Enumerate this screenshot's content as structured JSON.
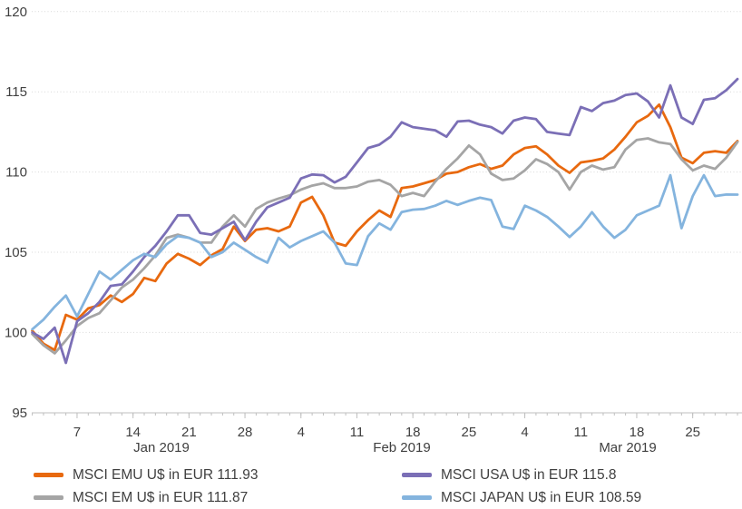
{
  "chart_data": {
    "type": "line",
    "title": "",
    "grid": "horizontal-dotted",
    "legend_position": "bottom",
    "x_axis": {
      "label": "",
      "num_points": 64,
      "start_date": "Jan 1 2019",
      "end_date": "Mar 29 2019",
      "week_tick_indices": [
        4,
        9,
        14,
        19,
        24,
        29,
        34,
        39,
        44,
        49,
        54,
        59
      ],
      "tick_labels": [
        "7",
        "14",
        "21",
        "28",
        "4",
        "11",
        "18",
        "25",
        "4",
        "11",
        "18",
        "25"
      ],
      "month_labels": [
        "Jan 2019",
        "Feb 2019",
        "Mar 2019"
      ]
    },
    "y_axis": {
      "label": "",
      "min": 95,
      "max": 120,
      "tick_values": [
        95,
        100,
        105,
        110,
        115,
        120
      ],
      "grid_values": [
        100,
        105,
        110,
        115,
        120
      ]
    },
    "series": [
      {
        "name": "MSCI EMU U$ in EUR",
        "final_value": 111.93,
        "color": "#E8690F",
        "values": [
          100.1,
          99.3,
          98.9,
          101.1,
          100.8,
          101.5,
          101.7,
          102.3,
          101.9,
          102.4,
          103.4,
          103.2,
          104.3,
          104.9,
          104.6,
          104.2,
          104.8,
          105.2,
          106.6,
          105.7,
          106.4,
          106.5,
          106.3,
          106.6,
          108.1,
          108.45,
          107.3,
          105.6,
          105.4,
          106.3,
          107.0,
          107.6,
          107.2,
          109.0,
          109.1,
          109.3,
          109.5,
          109.9,
          110.0,
          110.3,
          110.5,
          110.2,
          110.4,
          111.1,
          111.5,
          111.6,
          111.1,
          110.4,
          109.95,
          110.6,
          110.7,
          110.85,
          111.4,
          112.2,
          113.1,
          113.5,
          114.2,
          112.8,
          110.9,
          110.55,
          111.2,
          111.3,
          111.2,
          111.93
        ]
      },
      {
        "name": "MSCI EM U$ in EUR",
        "final_value": 111.87,
        "color": "#A5A5A5",
        "values": [
          99.9,
          99.2,
          98.7,
          99.5,
          100.4,
          100.9,
          101.2,
          102.0,
          102.8,
          103.3,
          104.0,
          104.8,
          105.9,
          106.1,
          105.9,
          105.6,
          105.6,
          106.6,
          107.3,
          106.6,
          107.7,
          108.1,
          108.35,
          108.55,
          108.9,
          109.15,
          109.3,
          109.0,
          109.0,
          109.1,
          109.4,
          109.5,
          109.2,
          108.5,
          108.7,
          108.5,
          109.4,
          110.2,
          110.85,
          111.65,
          111.1,
          109.9,
          109.5,
          109.6,
          110.1,
          110.8,
          110.5,
          110.0,
          108.9,
          110.0,
          110.4,
          110.15,
          110.3,
          111.4,
          112.0,
          112.1,
          111.85,
          111.75,
          110.8,
          110.1,
          110.4,
          110.2,
          110.9,
          111.87
        ]
      },
      {
        "name": "MSCI USA U$ in EUR",
        "final_value": 115.8,
        "color": "#7B6FB6",
        "values": [
          100.0,
          99.6,
          100.3,
          98.1,
          100.7,
          101.2,
          101.9,
          102.9,
          103.0,
          103.8,
          104.7,
          105.4,
          106.3,
          107.3,
          107.3,
          106.2,
          106.1,
          106.5,
          106.9,
          105.75,
          106.9,
          107.8,
          108.1,
          108.4,
          109.6,
          109.85,
          109.8,
          109.35,
          109.7,
          110.6,
          111.5,
          111.7,
          112.2,
          113.1,
          112.8,
          112.7,
          112.6,
          112.2,
          113.15,
          113.2,
          112.95,
          112.8,
          112.4,
          113.2,
          113.4,
          113.3,
          112.5,
          112.4,
          112.3,
          114.05,
          113.8,
          114.3,
          114.45,
          114.8,
          114.9,
          114.4,
          113.4,
          115.4,
          113.4,
          113.0,
          114.5,
          114.6,
          115.1,
          115.8
        ]
      },
      {
        "name": "MSCI JAPAN U$ in EUR",
        "final_value": 108.59,
        "color": "#84B4DE",
        "values": [
          100.2,
          100.8,
          101.6,
          102.3,
          101.0,
          102.4,
          103.8,
          103.3,
          103.9,
          104.5,
          104.9,
          104.7,
          105.5,
          106.0,
          105.9,
          105.6,
          104.7,
          105.0,
          105.6,
          105.15,
          104.7,
          104.35,
          105.9,
          105.3,
          105.7,
          106.0,
          106.3,
          105.6,
          104.3,
          104.2,
          106.0,
          106.8,
          106.4,
          107.5,
          107.65,
          107.7,
          107.9,
          108.2,
          107.95,
          108.2,
          108.4,
          108.25,
          106.6,
          106.45,
          107.9,
          107.6,
          107.2,
          106.6,
          105.95,
          106.6,
          107.5,
          106.6,
          105.9,
          106.4,
          107.3,
          107.6,
          107.9,
          109.8,
          106.5,
          108.5,
          109.8,
          108.5,
          108.6,
          108.59
        ]
      }
    ]
  },
  "legend": {
    "items": [
      {
        "label": "MSCI EMU U$ in EUR 111.93",
        "color": "#E8690F",
        "series": "MSCI EMU U$ in EUR"
      },
      {
        "label": "MSCI USA U$ in EUR 115.8",
        "color": "#7B6FB6",
        "series": "MSCI USA U$ in EUR"
      },
      {
        "label": "MSCI EM U$ in EUR 111.87",
        "color": "#A5A5A5",
        "series": "MSCI EM U$ in EUR"
      },
      {
        "label": "MSCI JAPAN U$ in EUR 108.59",
        "color": "#84B4DE",
        "series": "MSCI JAPAN U$ in EUR"
      }
    ]
  }
}
